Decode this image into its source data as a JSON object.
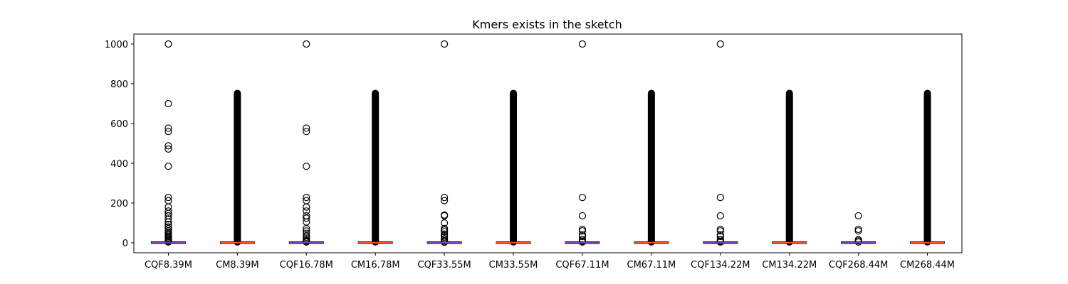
{
  "chart_data": {
    "type": "box",
    "title": "Kmers exists in the sketch",
    "xlabel": "",
    "ylabel": "",
    "ylim": [
      -50,
      1050
    ],
    "yticks": [
      0,
      200,
      400,
      600,
      800,
      1000
    ],
    "grid": false,
    "categories": [
      "CQF8.39M",
      "CM8.39M",
      "CQF16.78M",
      "CM16.78M",
      "CQF33.55M",
      "CM33.55M",
      "CQF67.11M",
      "CM67.11M",
      "CQF134.22M",
      "CM134.22M",
      "CQF268.44M",
      "CM268.44M"
    ],
    "boxes": [
      {
        "label": "CQF8.39M",
        "kind": "CQF",
        "median": 1,
        "q1": 0,
        "q3": 2,
        "whisker_low": 0,
        "whisker_high": 2,
        "outliers": [
          1000,
          700,
          577,
          560,
          488,
          472,
          385,
          228,
          212,
          180,
          160,
          148,
          136,
          120,
          105,
          92,
          80,
          70,
          60,
          52,
          45,
          38,
          32,
          26,
          20,
          15,
          10,
          6,
          4
        ]
      },
      {
        "label": "CM8.39M",
        "kind": "CM",
        "median": 1,
        "q1": 0,
        "q3": 2,
        "whisker_low": 0,
        "whisker_high": 2,
        "dense_outliers": [
          4,
          752
        ]
      },
      {
        "label": "CQF16.78M",
        "kind": "CQF",
        "median": 1,
        "q1": 0,
        "q3": 2,
        "whisker_low": 0,
        "whisker_high": 2,
        "outliers": [
          1000,
          577,
          560,
          385,
          228,
          212,
          180,
          160,
          136,
          124,
          105,
          72,
          60,
          48,
          36,
          28,
          20,
          12,
          8,
          4
        ]
      },
      {
        "label": "CM16.78M",
        "kind": "CM",
        "median": 1,
        "q1": 0,
        "q3": 2,
        "whisker_low": 0,
        "whisker_high": 2,
        "dense_outliers": [
          4,
          752
        ]
      },
      {
        "label": "CQF33.55M",
        "kind": "CQF",
        "median": 1,
        "q1": 0,
        "q3": 2,
        "whisker_low": 0,
        "whisker_high": 2,
        "outliers": [
          1000,
          228,
          212,
          140,
          136,
          100,
          72,
          64,
          56,
          44,
          36,
          28,
          20,
          12,
          6,
          3
        ]
      },
      {
        "label": "CM33.55M",
        "kind": "CM",
        "median": 1,
        "q1": 0,
        "q3": 2,
        "whisker_low": 0,
        "whisker_high": 2,
        "dense_outliers": [
          4,
          752
        ]
      },
      {
        "label": "CQF67.11M",
        "kind": "CQF",
        "median": 1,
        "q1": 0,
        "q3": 2,
        "whisker_low": 0,
        "whisker_high": 2,
        "outliers": [
          1000,
          228,
          136,
          68,
          60,
          40,
          32,
          16,
          8,
          4
        ]
      },
      {
        "label": "CM67.11M",
        "kind": "CM",
        "median": 1,
        "q1": 0,
        "q3": 2,
        "whisker_low": 0,
        "whisker_high": 2,
        "dense_outliers": [
          4,
          752
        ]
      },
      {
        "label": "CQF134.22M",
        "kind": "CQF",
        "median": 1,
        "q1": 0,
        "q3": 2,
        "whisker_low": 0,
        "whisker_high": 2,
        "outliers": [
          1000,
          228,
          136,
          68,
          60,
          40,
          32,
          16,
          8,
          4
        ]
      },
      {
        "label": "CM134.22M",
        "kind": "CM",
        "median": 1,
        "q1": 0,
        "q3": 2,
        "whisker_low": 0,
        "whisker_high": 2,
        "dense_outliers": [
          4,
          752
        ]
      },
      {
        "label": "CQF268.44M",
        "kind": "CQF",
        "median": 1,
        "q1": 0,
        "q3": 2,
        "whisker_low": 0,
        "whisker_high": 2,
        "outliers": [
          136,
          68,
          60,
          16,
          10,
          4
        ]
      },
      {
        "label": "CM268.44M",
        "kind": "CM",
        "median": 1,
        "q1": 0,
        "q3": 2,
        "whisker_low": 0,
        "whisker_high": 2,
        "dense_outliers": [
          4,
          752
        ]
      }
    ],
    "colors": {
      "cqf_median": "#7b3fc7",
      "cm_median": "#ff5a1f",
      "box": "#000000",
      "outlier": "#000000"
    }
  }
}
